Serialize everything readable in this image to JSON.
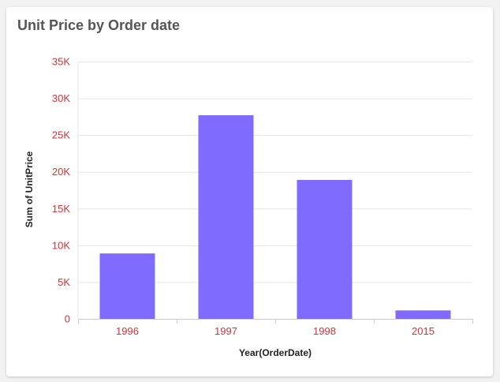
{
  "card": {
    "title": "Unit Price by Order date"
  },
  "colors": {
    "bar": "#7f6cff",
    "tick_label": "#d13438",
    "grid": "#e6e6e6"
  },
  "chart_data": {
    "type": "bar",
    "title": "Unit Price by Order date",
    "xlabel": "Year(OrderDate)",
    "ylabel": "Sum of UnitPrice",
    "categories": [
      "1996",
      "1997",
      "1998",
      "2015"
    ],
    "series": [
      {
        "values": [
          8900,
          27700,
          18900,
          1150
        ]
      }
    ],
    "ylim": [
      0,
      35000
    ],
    "yticks": [
      0,
      5000,
      10000,
      15000,
      20000,
      25000,
      30000,
      35000
    ],
    "ytick_labels": [
      "0",
      "5K",
      "10K",
      "15K",
      "20K",
      "25K",
      "30K",
      "35K"
    ],
    "grid": true,
    "legend": "none"
  }
}
